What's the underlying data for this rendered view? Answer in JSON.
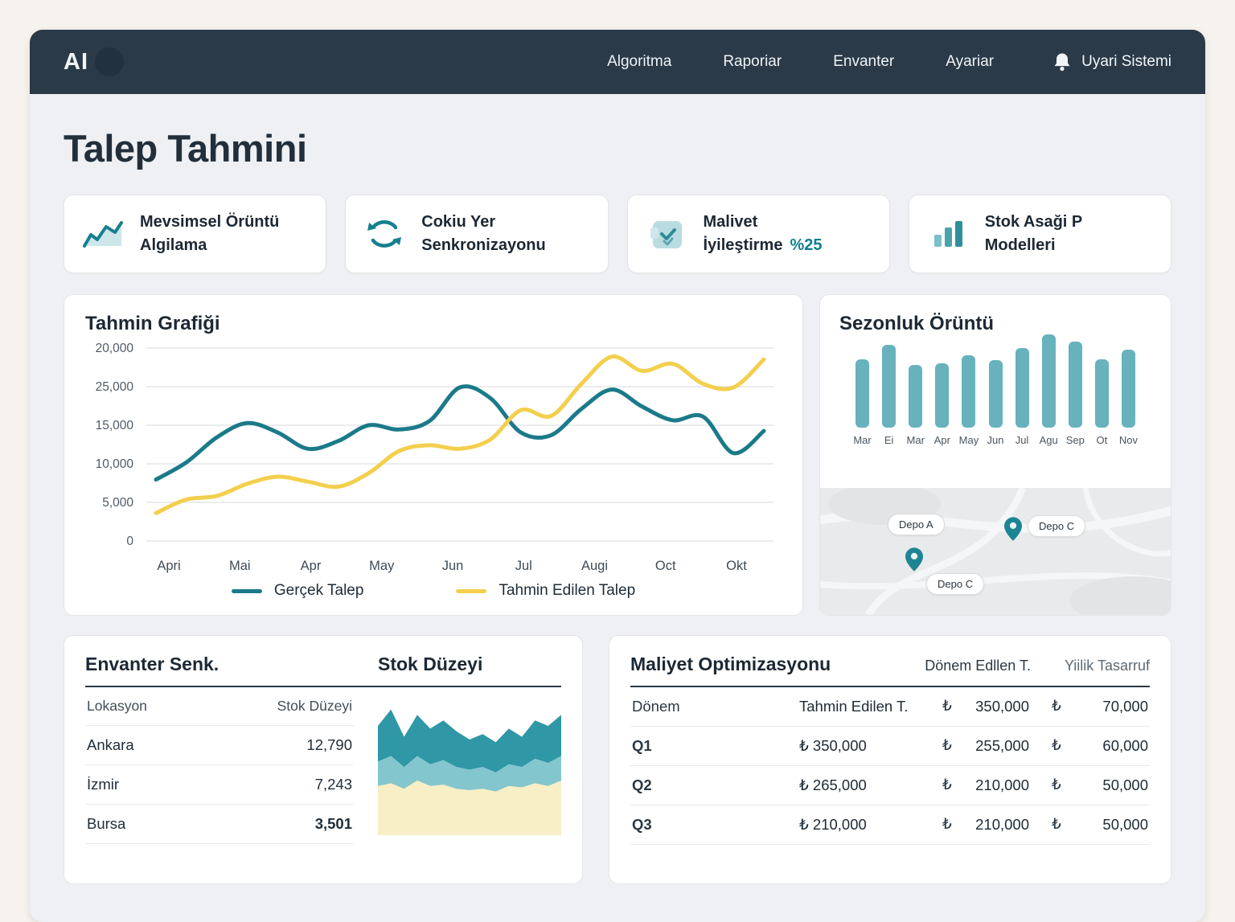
{
  "navbar": {
    "logo": "AI",
    "items": [
      "Algoritma",
      "Raporiar",
      "Envanter",
      "Ayariar"
    ],
    "alert_label": "Uyari Sistemi"
  },
  "page_title": "Talep Tahmini",
  "stat_cards": [
    {
      "line1": "Mevsimsel Örüntü",
      "line2": "Algilama"
    },
    {
      "line1": "Cokiu Yer",
      "line2": "Senkronizayonu"
    },
    {
      "line1": "Malivet",
      "line2": "İyileştirme",
      "highlight": "%25"
    },
    {
      "line1": "Stok Asaği P",
      "line2": "Modelleri"
    }
  ],
  "chart_data": [
    {
      "type": "line",
      "title": "Tahmin Grafiği",
      "x_labels": [
        "Apri",
        "Mai",
        "Apr",
        "May",
        "Jun",
        "Jul",
        "Augi",
        "Oct",
        "Okt"
      ],
      "y_tick_labels": [
        "20,000",
        "25,000",
        "15,000",
        "10,000",
        "5,000",
        "0"
      ],
      "ylim": [
        0,
        27000
      ],
      "grid": true,
      "legend_position": "bottom",
      "series": [
        {
          "name": "Gerçek Talep",
          "color": "#1b7a8a",
          "values": [
            8600,
            11000,
            14500,
            16500,
            15200,
            12900,
            14000,
            16200,
            15600,
            16800,
            21500,
            20000,
            15200,
            14800,
            18500,
            21200,
            18800,
            16900,
            17400,
            12300,
            15400
          ]
        },
        {
          "name": "Tahmin Edilen Talep",
          "color": "#f3cf4d",
          "values": [
            3900,
            5800,
            6300,
            8000,
            9000,
            8300,
            7600,
            9500,
            12600,
            13400,
            12900,
            14200,
            18300,
            17500,
            22000,
            25800,
            23800,
            24800,
            22000,
            21500,
            25400
          ]
        }
      ]
    },
    {
      "type": "bar",
      "title": "Sezonluk Örüntü",
      "categories": [
        "Mar",
        "Ei",
        "Mar",
        "Apr",
        "May",
        "Jun",
        "Jul",
        "Agu",
        "Sep",
        "Ot",
        "Nov"
      ],
      "values": [
        85,
        103,
        78,
        80,
        90,
        84,
        99,
        116,
        107,
        85,
        97
      ],
      "color": "#67b2bd",
      "ylim": [
        0,
        120
      ]
    },
    {
      "type": "area",
      "title": "Stok Düzeyi",
      "series": [
        {
          "name": "ust-bant",
          "color": "#2f97a5",
          "values": [
            80,
            92,
            72,
            88,
            78,
            84,
            76,
            70,
            74,
            68,
            78,
            72,
            84,
            80,
            88
          ]
        },
        {
          "name": "orta-bant",
          "color": "#84c6ce",
          "values": [
            54,
            58,
            50,
            58,
            52,
            55,
            50,
            48,
            50,
            46,
            52,
            50,
            56,
            53,
            58
          ]
        },
        {
          "name": "alt-bant",
          "color": "#f9efc6",
          "values": [
            36,
            38,
            34,
            40,
            36,
            37,
            34,
            33,
            34,
            32,
            36,
            35,
            38,
            36,
            40
          ]
        }
      ]
    }
  ],
  "map": {
    "pins": [
      "Depo A",
      "Depo C",
      "Depo C"
    ]
  },
  "inventory": {
    "title": "Envanter Senk.",
    "chart_title": "Stok Düzeyi",
    "columns": [
      "Lokasyon",
      "Stok Düzeyi"
    ],
    "rows": [
      [
        "Ankara",
        "12,790"
      ],
      [
        "İzmir",
        "7,243"
      ],
      [
        "Bursa",
        "3,501"
      ]
    ]
  },
  "cost": {
    "title": "Maliyet Optimizasyonu",
    "header_right": [
      "Dönem Edllen T.",
      "Yiilik Tasarruf"
    ],
    "currency": "₺",
    "head_row": [
      "Dönem",
      "Tahmin Edilen T.",
      "350,000",
      "70,000"
    ],
    "rows": [
      [
        "Q1",
        "₺ 350,000",
        "255,000",
        "60,000"
      ],
      [
        "Q2",
        "₺ 265,000",
        "210,000",
        "50,000"
      ],
      [
        "Q3",
        "₺ 210,000",
        "210,000",
        "50,000"
      ]
    ]
  }
}
